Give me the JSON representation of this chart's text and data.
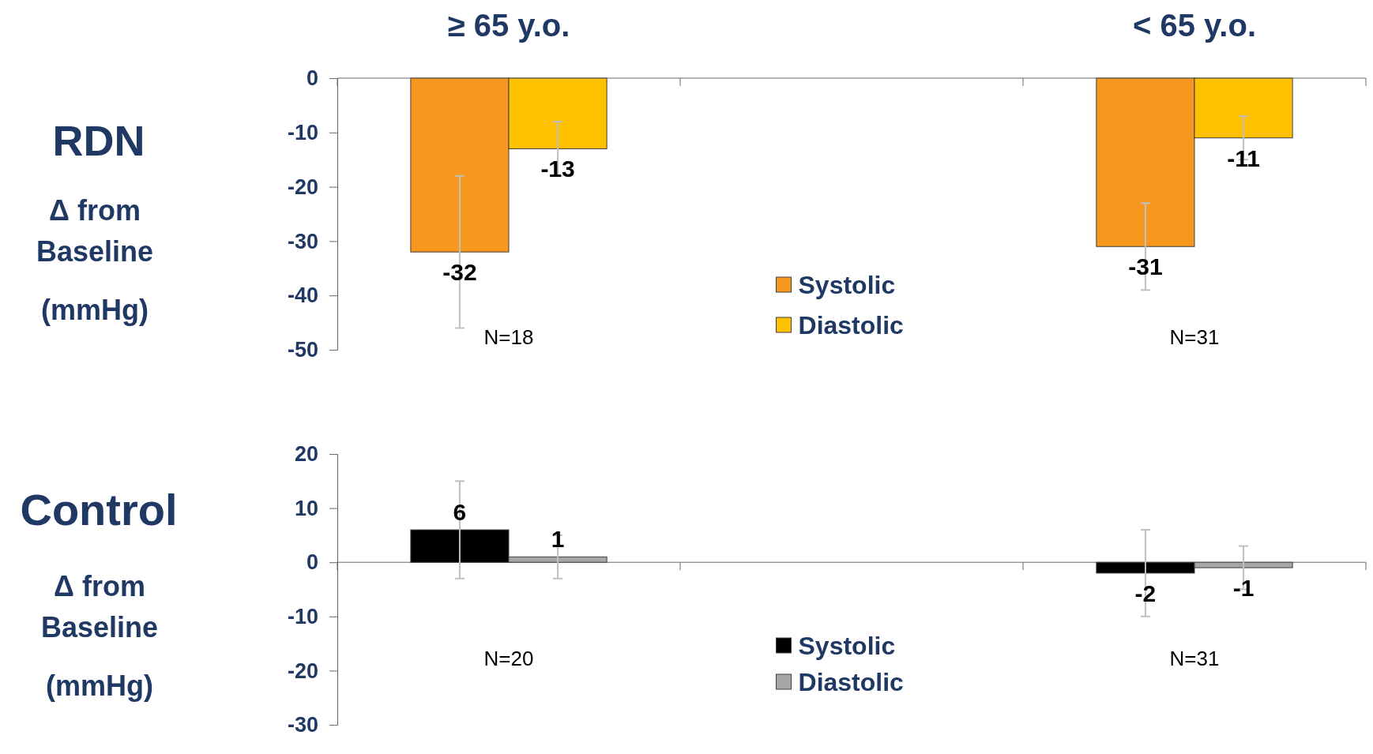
{
  "chart_data": [
    {
      "type": "bar",
      "title": "RDN",
      "ylabel": "Δ from Baseline (mmHg)",
      "categories": [
        "N=18",
        null,
        "N=31"
      ],
      "series": [
        {
          "name": "Systolic",
          "color": "#f7971e",
          "values": [
            -32,
            null,
            -31
          ],
          "errors": [
            [
              -46,
              -18
            ],
            null,
            [
              -39,
              -23
            ]
          ]
        },
        {
          "name": "Diastolic",
          "color": "#ffc000",
          "values": [
            -13,
            null,
            -11
          ],
          "errors": [
            [
              -18,
              -8
            ],
            null,
            [
              -15,
              -7
            ]
          ]
        }
      ],
      "ylim": [
        -50,
        0
      ],
      "yticks": [
        0,
        -10,
        -20,
        -30,
        -40,
        -50
      ],
      "data_labels": true,
      "legend": "bottom",
      "annotations": [
        "≥ 65 y.o.",
        "< 65 y.o."
      ]
    },
    {
      "type": "bar",
      "title": "Control",
      "ylabel": "Δ from Baseline (mmHg)",
      "categories": [
        "N=20",
        null,
        "N=31"
      ],
      "series": [
        {
          "name": "Systolic",
          "color": "#000000",
          "values": [
            6,
            null,
            -2
          ],
          "errors": [
            [
              -3,
              15
            ],
            null,
            [
              -10,
              6
            ]
          ]
        },
        {
          "name": "Diastolic",
          "color": "#a6a6a6",
          "values": [
            1,
            null,
            -1
          ],
          "errors": [
            [
              -3,
              5
            ],
            null,
            [
              -5,
              3
            ]
          ]
        }
      ],
      "ylim": [
        -30,
        20
      ],
      "yticks": [
        20,
        10,
        0,
        -10,
        -20,
        -30
      ],
      "data_labels": true,
      "legend": "bottom"
    }
  ]
}
